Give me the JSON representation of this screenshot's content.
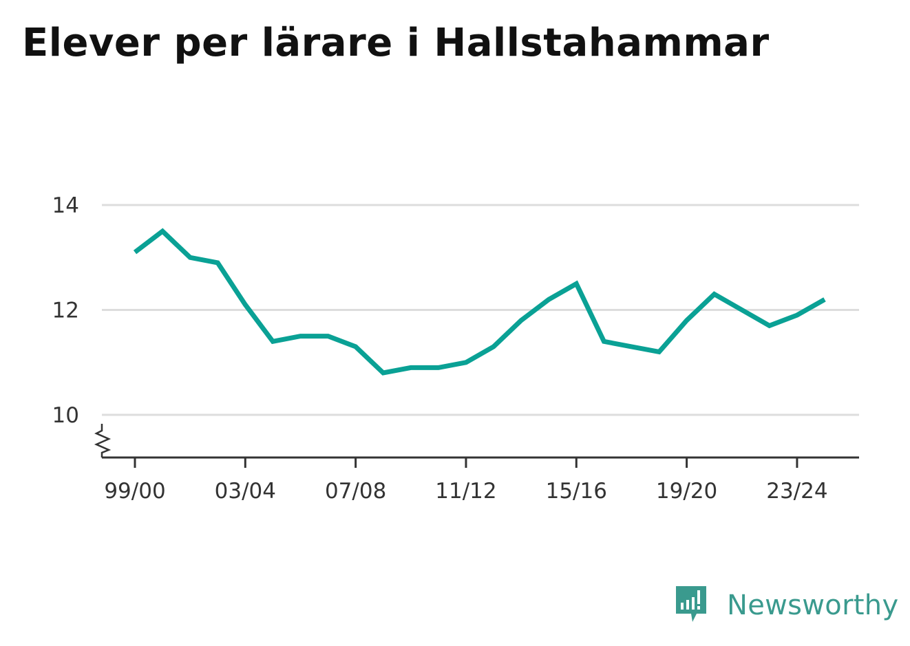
{
  "chart_data": {
    "type": "line",
    "title": "Elever per lärare i Hallstahammar",
    "xlabel": "",
    "ylabel": "",
    "ylim": [
      10,
      14
    ],
    "grid": true,
    "axis_break": true,
    "x_tick_labels": [
      "99/00",
      "03/04",
      "07/08",
      "11/12",
      "15/16",
      "19/20",
      "23/24"
    ],
    "y_tick_labels": [
      "10",
      "12",
      "14"
    ],
    "x": [
      "99/00",
      "00/01",
      "01/02",
      "02/03",
      "03/04",
      "04/05",
      "05/06",
      "06/07",
      "07/08",
      "08/09",
      "09/10",
      "10/11",
      "11/12",
      "12/13",
      "13/14",
      "14/15",
      "15/16",
      "16/17",
      "17/18",
      "18/19",
      "19/20",
      "20/21",
      "21/22",
      "22/23",
      "23/24",
      "24/25"
    ],
    "series": [
      {
        "values": [
          13.1,
          13.5,
          13.0,
          12.9,
          12.1,
          11.4,
          11.5,
          11.5,
          11.3,
          10.8,
          10.9,
          10.9,
          11.0,
          11.3,
          11.8,
          12.2,
          12.5,
          11.4,
          11.3,
          11.2,
          11.8,
          12.3,
          12.0,
          11.7,
          11.9,
          12.2
        ],
        "color": "#0aa195"
      }
    ]
  },
  "brand": {
    "name": "Newsworthy",
    "color": "#3a9a8e"
  }
}
